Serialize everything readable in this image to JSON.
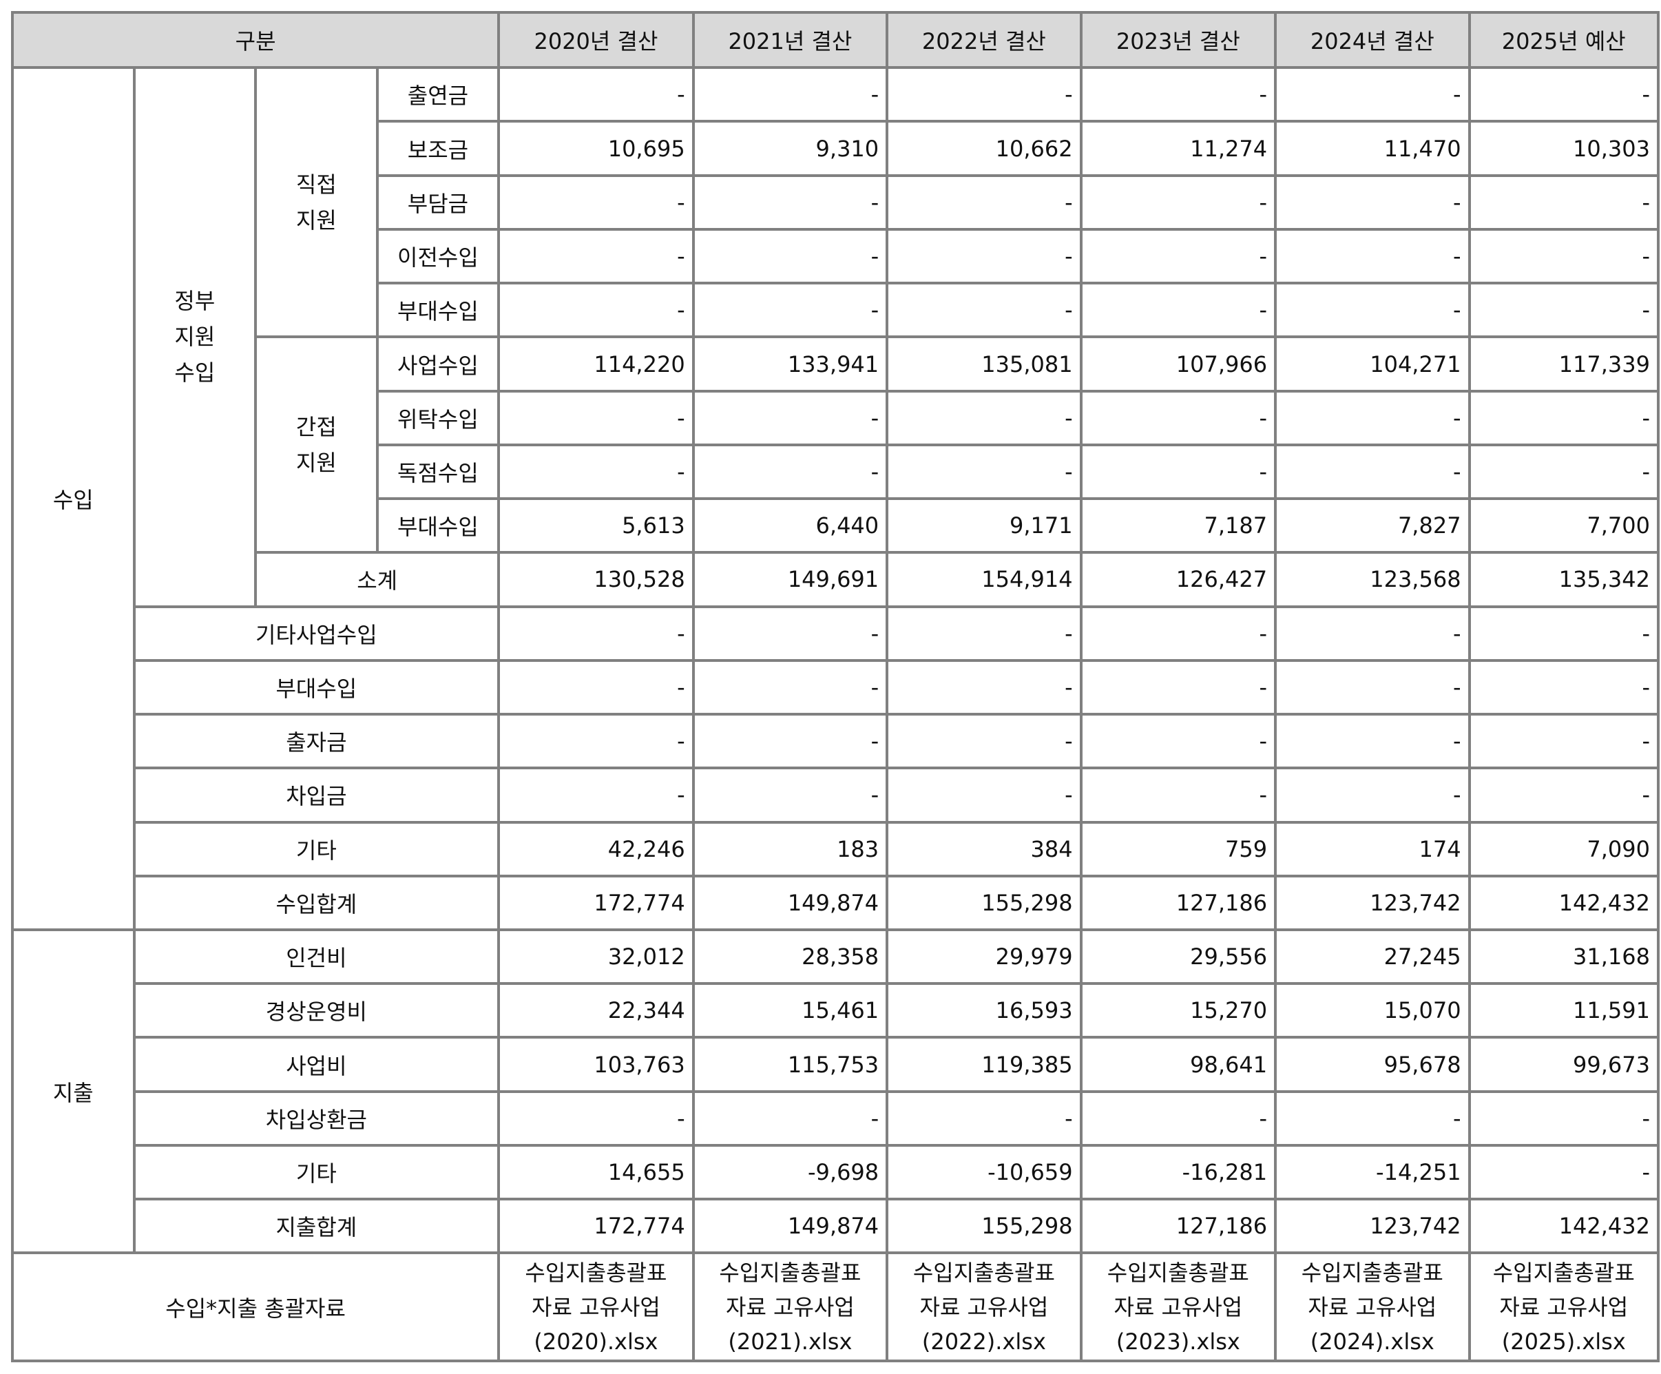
{
  "header": {
    "category": "구분",
    "years": [
      "2020년 결산",
      "2021년 결산",
      "2022년 결산",
      "2023년 결산",
      "2024년 결산",
      "2025년 예산"
    ]
  },
  "labels": {
    "revenue": "수입",
    "expense": "지출",
    "gov_support": [
      "정부",
      "지원",
      "수입"
    ],
    "direct": [
      "직접",
      "지원"
    ],
    "indirect": [
      "간접",
      "지원"
    ],
    "source_row": "수입*지출 총괄자료"
  },
  "direct_rows": [
    {
      "label": "출연금",
      "values": [
        "-",
        "-",
        "-",
        "-",
        "-",
        "-"
      ]
    },
    {
      "label": "보조금",
      "values": [
        "10,695",
        "9,310",
        "10,662",
        "11,274",
        "11,470",
        "10,303"
      ]
    },
    {
      "label": "부담금",
      "values": [
        "-",
        "-",
        "-",
        "-",
        "-",
        "-"
      ]
    },
    {
      "label": "이전수입",
      "values": [
        "-",
        "-",
        "-",
        "-",
        "-",
        "-"
      ]
    },
    {
      "label": "부대수입",
      "values": [
        "-",
        "-",
        "-",
        "-",
        "-",
        "-"
      ]
    }
  ],
  "indirect_rows": [
    {
      "label": "사업수입",
      "values": [
        "114,220",
        "133,941",
        "135,081",
        "107,966",
        "104,271",
        "117,339"
      ]
    },
    {
      "label": "위탁수입",
      "values": [
        "-",
        "-",
        "-",
        "-",
        "-",
        "-"
      ]
    },
    {
      "label": "독점수입",
      "values": [
        "-",
        "-",
        "-",
        "-",
        "-",
        "-"
      ]
    },
    {
      "label": "부대수입",
      "values": [
        "5,613",
        "6,440",
        "9,171",
        "7,187",
        "7,827",
        "7,700"
      ]
    }
  ],
  "subtotal": {
    "label": "소계",
    "values": [
      "130,528",
      "149,691",
      "154,914",
      "126,427",
      "123,568",
      "135,342"
    ]
  },
  "other_revenue_rows": [
    {
      "label": "기타사업수입",
      "values": [
        "-",
        "-",
        "-",
        "-",
        "-",
        "-"
      ]
    },
    {
      "label": "부대수입",
      "values": [
        "-",
        "-",
        "-",
        "-",
        "-",
        "-"
      ]
    },
    {
      "label": "출자금",
      "values": [
        "-",
        "-",
        "-",
        "-",
        "-",
        "-"
      ]
    },
    {
      "label": "차입금",
      "values": [
        "-",
        "-",
        "-",
        "-",
        "-",
        "-"
      ]
    },
    {
      "label": "기타",
      "values": [
        "42,246",
        "183",
        "384",
        "759",
        "174",
        "7,090"
      ]
    },
    {
      "label": "수입합계",
      "values": [
        "172,774",
        "149,874",
        "155,298",
        "127,186",
        "123,742",
        "142,432"
      ]
    }
  ],
  "expense_rows": [
    {
      "label": "인건비",
      "values": [
        "32,012",
        "28,358",
        "29,979",
        "29,556",
        "27,245",
        "31,168"
      ]
    },
    {
      "label": "경상운영비",
      "values": [
        "22,344",
        "15,461",
        "16,593",
        "15,270",
        "15,070",
        "11,591"
      ]
    },
    {
      "label": "사업비",
      "values": [
        "103,763",
        "115,753",
        "119,385",
        "98,641",
        "95,678",
        "99,673"
      ]
    },
    {
      "label": "차입상환금",
      "values": [
        "-",
        "-",
        "-",
        "-",
        "-",
        "-"
      ]
    },
    {
      "label": "기타",
      "values": [
        "14,655",
        "-9,698",
        "-10,659",
        "-16,281",
        "-14,251",
        "-"
      ]
    },
    {
      "label": "지출합계",
      "values": [
        "172,774",
        "149,874",
        "155,298",
        "127,186",
        "123,742",
        "142,432"
      ]
    }
  ],
  "sources": [
    [
      "수입지출총괄표",
      "자료 고유사업",
      "(2020).xlsx"
    ],
    [
      "수입지출총괄표",
      "자료 고유사업",
      "(2021).xlsx"
    ],
    [
      "수입지출총괄표",
      "자료 고유사업",
      "(2022).xlsx"
    ],
    [
      "수입지출총괄표",
      "자료 고유사업",
      "(2023).xlsx"
    ],
    [
      "수입지출총괄표",
      "자료 고유사업",
      "(2024).xlsx"
    ],
    [
      "수입지출총괄표",
      "자료 고유사업",
      "(2025).xlsx"
    ]
  ]
}
